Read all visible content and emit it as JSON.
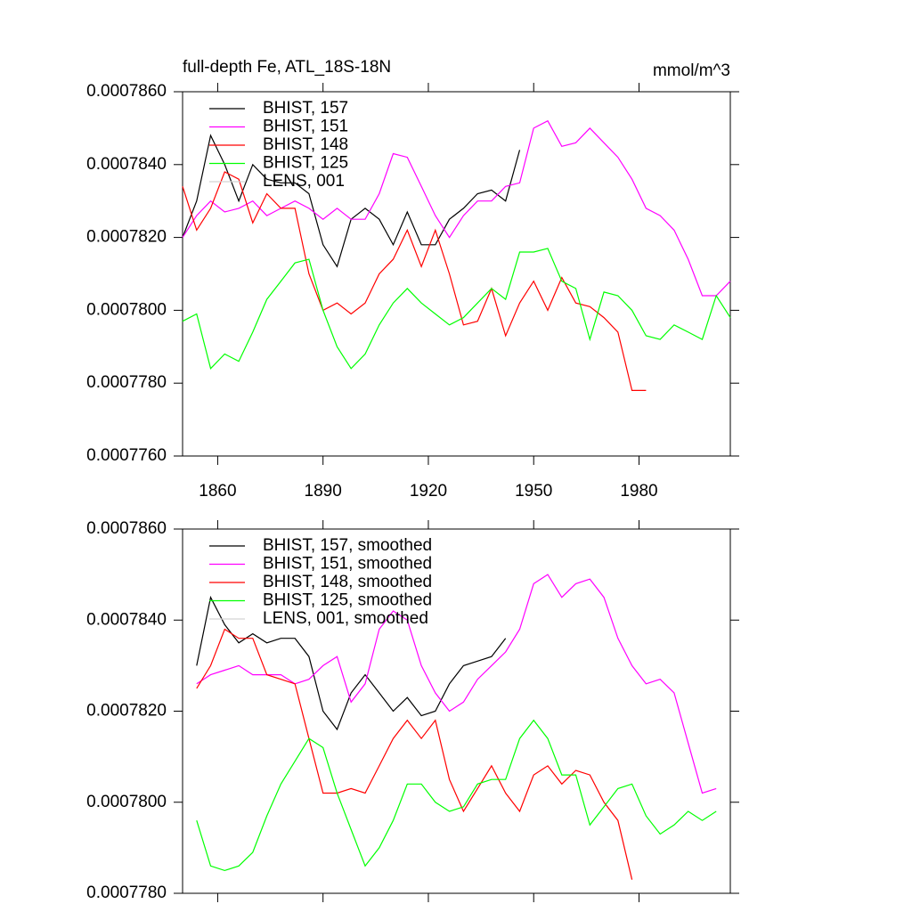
{
  "chart_data": [
    {
      "type": "line",
      "title": "full-depth Fe, ATL_18S-18N",
      "units": "mmol/m^3",
      "x": [
        1850,
        1854,
        1858,
        1862,
        1866,
        1870,
        1874,
        1878,
        1882,
        1886,
        1890,
        1894,
        1898,
        1902,
        1906,
        1910,
        1914,
        1918,
        1922,
        1926,
        1930,
        1934,
        1938,
        1942,
        1946,
        1950,
        1954,
        1958,
        1962,
        1966,
        1970,
        1974,
        1978,
        1982,
        1986,
        1990,
        1994,
        1998,
        2002,
        2006
      ],
      "xlim": [
        1850,
        2006
      ],
      "xticks": [
        1860,
        1890,
        1920,
        1950,
        1980
      ],
      "xtick_labels": true,
      "ylim": [
        0.000776,
        0.000786
      ],
      "yticks": [
        {
          "value": 0.000776,
          "label": "0.0007760"
        },
        {
          "value": 0.000778,
          "label": "0.0007780"
        },
        {
          "value": 0.00078,
          "label": "0.0007800"
        },
        {
          "value": 0.000782,
          "label": "0.0007820"
        },
        {
          "value": 0.000784,
          "label": "0.0007840"
        },
        {
          "value": 0.000786,
          "label": "0.0007860"
        }
      ],
      "legend": "upper left",
      "series": [
        {
          "name": "BHIST, 157",
          "color": "#000000",
          "values": [
            0.000782,
            0.000783,
            0.0007848,
            0.000784,
            0.000783,
            0.000784,
            0.0007836,
            0.0007835,
            0.0007835,
            0.0007832,
            0.0007818,
            0.0007812,
            0.0007825,
            0.0007828,
            0.0007825,
            0.0007818,
            0.0007827,
            0.0007818,
            0.0007818,
            0.0007825,
            0.0007828,
            0.0007832,
            0.0007833,
            0.000783,
            0.0007844,
            null,
            null,
            null,
            null,
            null,
            null,
            null,
            null,
            null,
            null,
            null,
            null,
            null,
            null,
            null
          ]
        },
        {
          "name": "BHIST, 151",
          "color": "#ff00ff",
          "values": [
            0.000782,
            0.0007826,
            0.000783,
            0.0007827,
            0.0007828,
            0.000783,
            0.0007826,
            0.0007828,
            0.000783,
            0.0007828,
            0.0007825,
            0.0007828,
            0.0007825,
            0.0007825,
            0.0007832,
            0.0007843,
            0.0007842,
            0.0007834,
            0.0007826,
            0.000782,
            0.0007826,
            0.000783,
            0.000783,
            0.0007834,
            0.0007835,
            0.000785,
            0.0007852,
            0.0007845,
            0.0007846,
            0.000785,
            0.0007846,
            0.0007842,
            0.0007836,
            0.0007828,
            0.0007826,
            0.0007822,
            0.0007814,
            0.0007804,
            0.0007804,
            0.0007808
          ]
        },
        {
          "name": "BHIST, 148",
          "color": "#ff0000",
          "values": [
            0.0007834,
            0.0007822,
            0.0007828,
            0.0007838,
            0.0007836,
            0.0007824,
            0.0007832,
            0.0007828,
            0.0007828,
            0.000781,
            0.00078,
            0.0007802,
            0.0007799,
            0.0007802,
            0.000781,
            0.0007814,
            0.0007822,
            0.0007812,
            0.0007822,
            0.000781,
            0.0007796,
            0.0007797,
            0.0007806,
            0.0007793,
            0.0007802,
            0.0007808,
            0.00078,
            0.0007809,
            0.0007802,
            0.0007801,
            0.0007798,
            0.0007794,
            0.0007778,
            0.0007778,
            null,
            null,
            null,
            null,
            null,
            null
          ]
        },
        {
          "name": "BHIST, 125",
          "color": "#00ff00",
          "values": [
            0.0007797,
            0.0007799,
            0.0007784,
            0.0007788,
            0.0007786,
            0.0007794,
            0.0007803,
            0.0007808,
            0.0007813,
            0.0007814,
            0.00078,
            0.000779,
            0.0007784,
            0.0007788,
            0.0007796,
            0.0007802,
            0.0007806,
            0.0007802,
            0.0007799,
            0.0007796,
            0.0007798,
            0.0007802,
            0.0007806,
            0.0007803,
            0.0007816,
            0.0007816,
            0.0007817,
            0.0007808,
            0.0007806,
            0.0007792,
            0.0007805,
            0.0007804,
            0.00078,
            0.0007793,
            0.0007792,
            0.0007796,
            0.0007794,
            0.0007792,
            0.0007804,
            0.0007798
          ]
        },
        {
          "name": "LENS, 001",
          "color": "#d3d3d3",
          "values": [
            null,
            null,
            null,
            null,
            null,
            null,
            null,
            null,
            null,
            null,
            null,
            null,
            null,
            null,
            null,
            null,
            null,
            null,
            null,
            null,
            null,
            null,
            null,
            null,
            null,
            null,
            null,
            null,
            null,
            null,
            null,
            null,
            null,
            null,
            null,
            null,
            null,
            null,
            null,
            null
          ]
        }
      ]
    },
    {
      "type": "line",
      "x": [
        1850,
        1854,
        1858,
        1862,
        1866,
        1870,
        1874,
        1878,
        1882,
        1886,
        1890,
        1894,
        1898,
        1902,
        1906,
        1910,
        1914,
        1918,
        1922,
        1926,
        1930,
        1934,
        1938,
        1942,
        1946,
        1950,
        1954,
        1958,
        1962,
        1966,
        1970,
        1974,
        1978,
        1982,
        1986,
        1990,
        1994,
        1998,
        2002,
        2006
      ],
      "xlim": [
        1850,
        2006
      ],
      "xticks": [
        1860,
        1890,
        1920,
        1950,
        1980
      ],
      "xtick_labels": false,
      "ylim": [
        0.000778,
        0.000786
      ],
      "yticks": [
        {
          "value": 0.000778,
          "label": "0.0007780"
        },
        {
          "value": 0.00078,
          "label": "0.0007800"
        },
        {
          "value": 0.000782,
          "label": "0.0007820"
        },
        {
          "value": 0.000784,
          "label": "0.0007840"
        },
        {
          "value": 0.000786,
          "label": "0.0007860"
        }
      ],
      "legend": "upper left",
      "series": [
        {
          "name": "BHIST, 157, smoothed",
          "color": "#000000",
          "values": [
            null,
            0.000783,
            0.0007845,
            0.0007839,
            0.0007835,
            0.0007837,
            0.0007835,
            0.0007836,
            0.0007836,
            0.0007832,
            0.000782,
            0.0007816,
            0.0007824,
            0.0007828,
            0.0007824,
            0.000782,
            0.0007823,
            0.0007819,
            0.000782,
            0.0007826,
            0.000783,
            0.0007831,
            0.0007832,
            0.0007836,
            null,
            null,
            null,
            null,
            null,
            null,
            null,
            null,
            null,
            null,
            null,
            null,
            null,
            null,
            null,
            null
          ]
        },
        {
          "name": "BHIST, 151, smoothed",
          "color": "#ff00ff",
          "values": [
            null,
            0.0007826,
            0.0007828,
            0.0007829,
            0.000783,
            0.0007828,
            0.0007828,
            0.0007828,
            0.0007826,
            0.0007827,
            0.000783,
            0.0007832,
            0.0007822,
            0.0007826,
            0.0007838,
            0.0007842,
            0.000784,
            0.000783,
            0.0007824,
            0.000782,
            0.0007822,
            0.0007827,
            0.000783,
            0.0007833,
            0.0007838,
            0.0007848,
            0.000785,
            0.0007845,
            0.0007848,
            0.0007849,
            0.0007845,
            0.0007836,
            0.000783,
            0.0007826,
            0.0007827,
            0.0007824,
            0.0007813,
            0.0007802,
            0.0007803,
            null
          ]
        },
        {
          "name": "BHIST, 148, smoothed",
          "color": "#ff0000",
          "values": [
            null,
            0.0007825,
            0.000783,
            0.0007838,
            0.0007836,
            0.0007836,
            0.0007828,
            0.0007827,
            0.0007826,
            0.0007814,
            0.0007802,
            0.0007802,
            0.0007803,
            0.0007802,
            0.0007808,
            0.0007814,
            0.0007818,
            0.0007814,
            0.0007818,
            0.0007805,
            0.0007798,
            0.0007803,
            0.0007808,
            0.0007802,
            0.0007798,
            0.0007806,
            0.0007808,
            0.0007804,
            0.0007807,
            0.0007806,
            0.00078,
            0.0007796,
            0.0007783,
            null,
            null,
            null,
            null,
            null,
            null,
            null
          ]
        },
        {
          "name": "BHIST, 125, smoothed",
          "color": "#00ff00",
          "values": [
            null,
            0.0007796,
            0.0007786,
            0.0007785,
            0.0007786,
            0.0007789,
            0.0007797,
            0.0007804,
            0.0007809,
            0.0007814,
            0.0007812,
            0.0007802,
            0.0007794,
            0.0007786,
            0.000779,
            0.0007796,
            0.0007804,
            0.0007804,
            0.00078,
            0.0007798,
            0.0007799,
            0.0007804,
            0.0007805,
            0.0007805,
            0.0007814,
            0.0007818,
            0.0007814,
            0.0007806,
            0.0007806,
            0.0007795,
            0.0007799,
            0.0007803,
            0.0007804,
            0.0007797,
            0.0007793,
            0.0007795,
            0.0007798,
            0.0007796,
            0.0007798,
            null
          ]
        },
        {
          "name": "LENS, 001, smoothed",
          "color": "#d3d3d3",
          "values": [
            null,
            null,
            null,
            null,
            null,
            null,
            null,
            null,
            null,
            null,
            null,
            null,
            null,
            null,
            null,
            null,
            null,
            null,
            null,
            null,
            null,
            null,
            null,
            null,
            null,
            null,
            null,
            null,
            null,
            null,
            null,
            null,
            null,
            null,
            null,
            null,
            null,
            null,
            null,
            null
          ]
        }
      ]
    }
  ]
}
